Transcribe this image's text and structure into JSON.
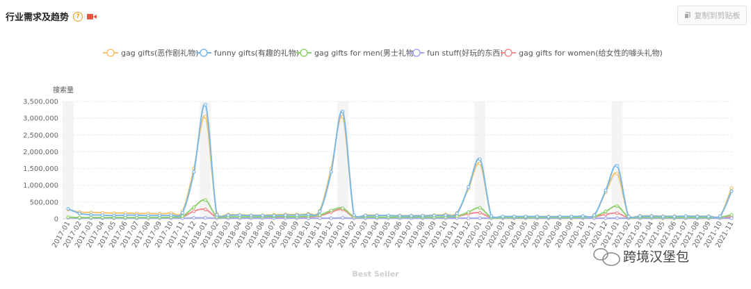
{
  "header": {
    "title": "行业需求及趋势",
    "help": "?"
  },
  "toolbar": {
    "copy_label": "复制到剪贴板"
  },
  "watermark": {
    "text": "跨境汉堡包"
  },
  "colors": {
    "band": "#f4f4f5",
    "grid": "#ececec",
    "series": [
      "#f5c26b",
      "#7ab8e6",
      "#8fd16d",
      "#a8a9ec",
      "#ee8a8d"
    ]
  },
  "chart_data": {
    "type": "line",
    "ylabel": "搜索量",
    "xlabel": "Best Seller",
    "ylim": [
      0,
      3500000
    ],
    "yticks": [
      0,
      500000,
      1000000,
      1500000,
      2000000,
      2500000,
      3000000,
      3500000
    ],
    "ytick_labels": [
      "0",
      "500,000",
      "1,000,000",
      "1,500,000",
      "2,000,000",
      "2,500,000",
      "3,000,000",
      "3,500,000"
    ],
    "grid": true,
    "legend_position": "top-center",
    "categories": [
      "2017-01",
      "2017-02",
      "2017-03",
      "2017-04",
      "2017-05",
      "2017-06",
      "2017-07",
      "2017-08",
      "2017-09",
      "2017-10",
      "2017-11",
      "2017-12",
      "2018-01",
      "2018-02",
      "2018-03",
      "2018-04",
      "2018-05",
      "2018-06",
      "2018-07",
      "2018-08",
      "2018-09",
      "2018-10",
      "2018-11",
      "2018-12",
      "2019-01",
      "2019-02",
      "2019-03",
      "2019-04",
      "2019-05",
      "2019-06",
      "2019-07",
      "2019-08",
      "2019-09",
      "2019-10",
      "2019-11",
      "2019-12",
      "2020-01",
      "2020-02",
      "2020-03",
      "2020-04",
      "2020-05",
      "2020-06",
      "2020-07",
      "2020-08",
      "2020-09",
      "2020-10",
      "2020-11",
      "2020-12",
      "2021-01",
      "2021-02",
      "2021-03",
      "2021-04",
      "2021-05",
      "2021-06",
      "2021-07",
      "2021-08",
      "2021-09",
      "2021-10",
      "2021-11"
    ],
    "series": [
      {
        "name": "gag gifts(恶作剧礼物)",
        "values": [
          280000,
          200000,
          190000,
          180000,
          170000,
          170000,
          160000,
          160000,
          150000,
          170000,
          230000,
          1500000,
          3050000,
          150000,
          130000,
          120000,
          110000,
          110000,
          120000,
          130000,
          130000,
          150000,
          250000,
          1500000,
          3050000,
          100000,
          110000,
          110000,
          100000,
          100000,
          100000,
          100000,
          110000,
          130000,
          180000,
          900000,
          1650000,
          80000,
          70000,
          70000,
          70000,
          70000,
          70000,
          70000,
          70000,
          80000,
          120000,
          800000,
          1350000,
          80000,
          90000,
          90000,
          80000,
          80000,
          80000,
          80000,
          80000,
          80000,
          920000
        ]
      },
      {
        "name": "funny gifts(有趣的礼物)",
        "values": [
          300000,
          160000,
          120000,
          110000,
          100000,
          110000,
          110000,
          100000,
          100000,
          110000,
          180000,
          1400000,
          3400000,
          120000,
          110000,
          110000,
          100000,
          100000,
          100000,
          110000,
          110000,
          130000,
          220000,
          1400000,
          3200000,
          110000,
          100000,
          100000,
          100000,
          90000,
          90000,
          90000,
          100000,
          110000,
          160000,
          950000,
          1780000,
          80000,
          70000,
          70000,
          70000,
          70000,
          60000,
          70000,
          70000,
          80000,
          110000,
          850000,
          1580000,
          70000,
          80000,
          80000,
          70000,
          70000,
          80000,
          70000,
          70000,
          80000,
          820000
        ]
      },
      {
        "name": "gag gifts for men(男士礼物)",
        "values": [
          50000,
          40000,
          40000,
          40000,
          40000,
          40000,
          40000,
          40000,
          40000,
          50000,
          80000,
          350000,
          560000,
          60000,
          60000,
          60000,
          60000,
          60000,
          70000,
          70000,
          60000,
          80000,
          110000,
          250000,
          320000,
          60000,
          60000,
          50000,
          50000,
          50000,
          60000,
          50000,
          50000,
          60000,
          80000,
          200000,
          330000,
          40000,
          40000,
          40000,
          40000,
          40000,
          40000,
          40000,
          40000,
          50000,
          70000,
          220000,
          380000,
          50000,
          50000,
          50000,
          40000,
          40000,
          40000,
          40000,
          40000,
          50000,
          120000
        ]
      },
      {
        "name": "fun stuff(好玩的东西)",
        "values": [
          30000,
          20000,
          20000,
          20000,
          20000,
          20000,
          20000,
          20000,
          20000,
          20000,
          20000,
          30000,
          30000,
          20000,
          20000,
          20000,
          20000,
          20000,
          20000,
          20000,
          20000,
          20000,
          20000,
          20000,
          30000,
          20000,
          20000,
          20000,
          20000,
          20000,
          20000,
          20000,
          20000,
          20000,
          20000,
          20000,
          20000,
          20000,
          20000,
          20000,
          20000,
          20000,
          20000,
          20000,
          20000,
          20000,
          20000,
          20000,
          20000,
          20000,
          20000,
          20000,
          20000,
          20000,
          20000,
          20000,
          20000,
          20000,
          20000
        ]
      },
      {
        "name": "gag gifts for women(给女性的噱头礼物)",
        "values": [
          40000,
          30000,
          30000,
          30000,
          30000,
          30000,
          30000,
          30000,
          30000,
          40000,
          60000,
          230000,
          280000,
          40000,
          40000,
          40000,
          40000,
          40000,
          40000,
          40000,
          40000,
          60000,
          90000,
          200000,
          280000,
          40000,
          40000,
          40000,
          40000,
          40000,
          40000,
          40000,
          40000,
          50000,
          70000,
          150000,
          180000,
          30000,
          30000,
          30000,
          30000,
          30000,
          30000,
          30000,
          30000,
          40000,
          60000,
          130000,
          170000,
          30000,
          30000,
          30000,
          30000,
          30000,
          30000,
          30000,
          30000,
          30000,
          60000
        ]
      }
    ]
  }
}
